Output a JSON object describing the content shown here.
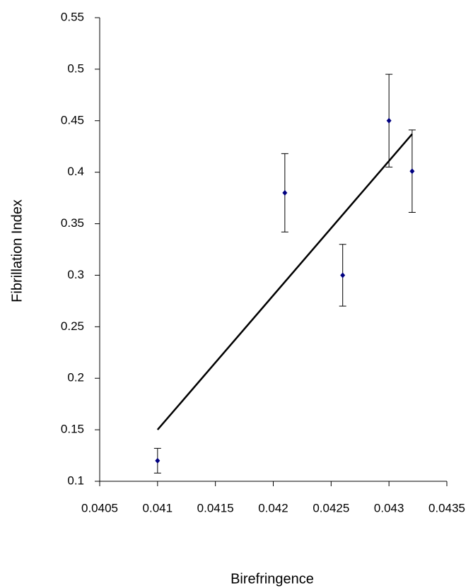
{
  "chart_data": {
    "type": "scatter",
    "x_label": "Birefringence",
    "y_label": "Fibrillation Index",
    "series": [
      {
        "color": "#000080",
        "x": [
          0.041,
          0.0421,
          0.0426,
          0.043,
          0.0432
        ],
        "values": [
          0.12,
          0.38,
          0.3,
          0.45,
          0.401
        ],
        "errors": [
          0.012,
          0.038,
          0.03,
          0.045,
          0.04
        ]
      }
    ],
    "trendline": {
      "color": "#000000",
      "x": [
        0.041,
        0.0432
      ],
      "values": [
        0.15,
        0.437
      ]
    },
    "xlim": [
      0.0405,
      0.0435
    ],
    "xticks": [
      0.0405,
      0.041,
      0.0415,
      0.042,
      0.0425,
      0.043,
      0.0435
    ],
    "ylim": [
      0.1,
      0.55
    ],
    "yticks": [
      0.1,
      0.15,
      0.2,
      0.25,
      0.3,
      0.35,
      0.4,
      0.45,
      0.5,
      0.55
    ]
  }
}
